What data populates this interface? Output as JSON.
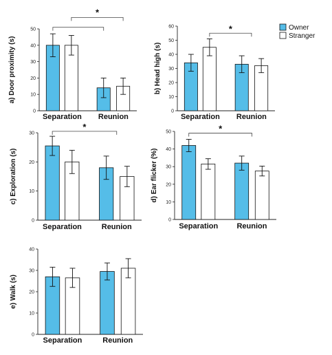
{
  "legend": [
    {
      "label": "Owner",
      "color": "#55bde8"
    },
    {
      "label": "Stranger",
      "color": "#ffffff"
    }
  ],
  "chart_data": [
    {
      "type": "bar",
      "ylabel": "a) Door proximity (s)",
      "categories": [
        "Separation",
        "Reunion"
      ],
      "ylim": [
        0,
        50
      ],
      "yticks": [
        0,
        10,
        20,
        30,
        40,
        50
      ],
      "series": [
        {
          "name": "Owner",
          "values": [
            40,
            14
          ],
          "errors": [
            7,
            6
          ]
        },
        {
          "name": "Stranger",
          "values": [
            40,
            15
          ],
          "errors": [
            6,
            5
          ]
        }
      ],
      "significance": [
        {
          "type": "double",
          "label": "*",
          "from_left": [
            0,
            1
          ],
          "from_right": [
            1,
            2
          ],
          "level": 57
        },
        {
          "type": "none"
        }
      ]
    },
    {
      "type": "bar",
      "ylabel": "b) Head high (s)",
      "categories": [
        "Separation",
        "Reunion"
      ],
      "ylim": [
        0,
        60
      ],
      "yticks": [
        0,
        10,
        20,
        30,
        40,
        50,
        60
      ],
      "series": [
        {
          "name": "Owner",
          "values": [
            34,
            33
          ],
          "errors": [
            6,
            6
          ]
        },
        {
          "name": "Stranger",
          "values": [
            45,
            32
          ],
          "errors": [
            6,
            5
          ]
        }
      ],
      "significance": [
        {
          "type": "bracket",
          "label": "*",
          "from": 1,
          "to": 2,
          "level": 55
        }
      ]
    },
    {
      "type": "bar",
      "ylabel": "c) Exploration (s)",
      "categories": [
        "Separation",
        "Reunion"
      ],
      "ylim": [
        0,
        30
      ],
      "yticks": [
        0,
        10,
        20,
        30
      ],
      "series": [
        {
          "name": "Owner",
          "values": [
            25.5,
            18
          ],
          "errors": [
            3.3,
            4
          ]
        },
        {
          "name": "Stranger",
          "values": [
            20,
            15
          ],
          "errors": [
            4,
            3.5
          ]
        }
      ],
      "significance": [
        {
          "type": "bracket",
          "label": "*",
          "from": 0,
          "to": 2,
          "level": 30.5
        }
      ]
    },
    {
      "type": "bar",
      "ylabel": "d) Ear flicker (%)",
      "categories": [
        "Separation",
        "Reunion"
      ],
      "ylim": [
        0,
        50
      ],
      "yticks": [
        0,
        10,
        20,
        30,
        40,
        50
      ],
      "series": [
        {
          "name": "Owner",
          "values": [
            42,
            32
          ],
          "errors": [
            3.5,
            4
          ]
        },
        {
          "name": "Stranger",
          "values": [
            31.5,
            27.5
          ],
          "errors": [
            3,
            2.8
          ]
        }
      ],
      "significance": [
        {
          "type": "bracket",
          "label": "*",
          "from": 0,
          "to": 2,
          "level": 49
        }
      ]
    },
    {
      "type": "bar",
      "ylabel": "e) Walk (s)",
      "categories": [
        "Separation",
        "Reunion"
      ],
      "ylim": [
        0,
        40
      ],
      "yticks": [
        0,
        10,
        20,
        30,
        40
      ],
      "series": [
        {
          "name": "Owner",
          "values": [
            27,
            29.5
          ],
          "errors": [
            4.5,
            4
          ]
        },
        {
          "name": "Stranger",
          "values": [
            26.5,
            31
          ],
          "errors": [
            4.5,
            4.5
          ]
        }
      ],
      "significance": []
    }
  ]
}
